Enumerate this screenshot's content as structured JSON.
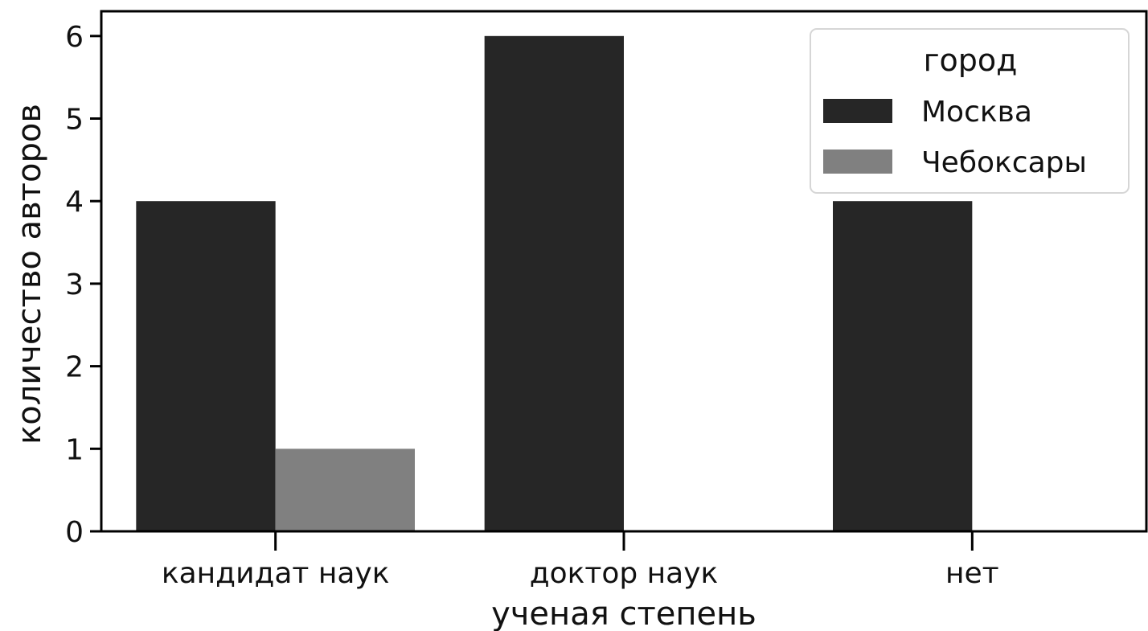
{
  "chart_data": {
    "type": "bar",
    "categories": [
      "кандидат наук",
      "доктор наук",
      "нет"
    ],
    "series": [
      {
        "name": "Москва",
        "values": [
          4,
          6,
          4
        ],
        "color": "#262626"
      },
      {
        "name": "Чебоксары",
        "values": [
          1,
          0,
          0
        ],
        "color": "#808080"
      }
    ],
    "xlabel": "ученая степень",
    "ylabel": "количество авторов",
    "ylim": [
      0,
      6.3
    ],
    "yticks": [
      0,
      1,
      2,
      3,
      4,
      5,
      6
    ],
    "grid": false,
    "legend": {
      "title": "город",
      "placement": "top-right"
    }
  }
}
